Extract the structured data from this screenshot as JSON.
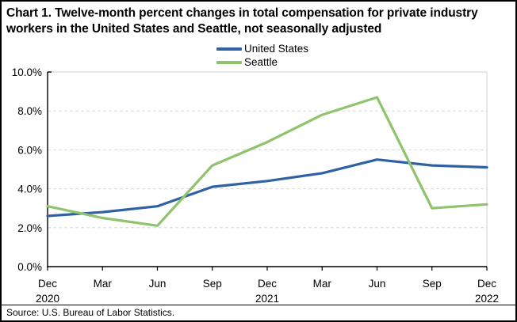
{
  "title": "Chart 1. Twelve-month percent changes in total compensation for private industry workers in the United States and Seattle, not seasonally adjusted",
  "source": "Source: U.S. Bureau of Labor Statistics.",
  "legend": [
    {
      "label": "United States",
      "color": "#3161A5"
    },
    {
      "label": "Seattle",
      "color": "#8FC36E"
    }
  ],
  "colors": {
    "grid": "#D9D9D9",
    "axis": "#000000",
    "united_states_line": "#3161A5",
    "seattle_line": "#8FC36E"
  },
  "chart_data": {
    "type": "line",
    "title": "Chart 1. Twelve-month percent changes in total compensation for private industry workers in the United States and Seattle, not seasonally adjusted",
    "categories": [
      "Dec 2020",
      "Mar 2021",
      "Jun 2021",
      "Sep 2021",
      "Dec 2021",
      "Mar 2022",
      "Jun 2022",
      "Sep 2022",
      "Dec 2022"
    ],
    "x_tick_labels": [
      [
        "Dec",
        "2020"
      ],
      [
        "Mar"
      ],
      [
        "Jun"
      ],
      [
        "Sep"
      ],
      [
        "Dec",
        "2021"
      ],
      [
        "Mar"
      ],
      [
        "Jun"
      ],
      [
        "Sep"
      ],
      [
        "Dec",
        "2022"
      ]
    ],
    "series": [
      {
        "name": "United States",
        "color": "#3161A5",
        "values": [
          2.6,
          2.8,
          3.1,
          4.1,
          4.4,
          4.8,
          5.5,
          5.2,
          5.1
        ]
      },
      {
        "name": "Seattle",
        "color": "#8FC36E",
        "values": [
          3.1,
          2.5,
          2.1,
          5.2,
          6.4,
          7.8,
          8.7,
          3.0,
          3.2
        ]
      }
    ],
    "xlabel": "",
    "ylabel": "",
    "ylim": [
      0,
      10
    ],
    "y_ticks": [
      0,
      2,
      4,
      6,
      8,
      10
    ],
    "y_tick_suffix": "%",
    "y_tick_decimals": 1,
    "grid": "horizontal-dashed",
    "legend_position": "top-center"
  }
}
